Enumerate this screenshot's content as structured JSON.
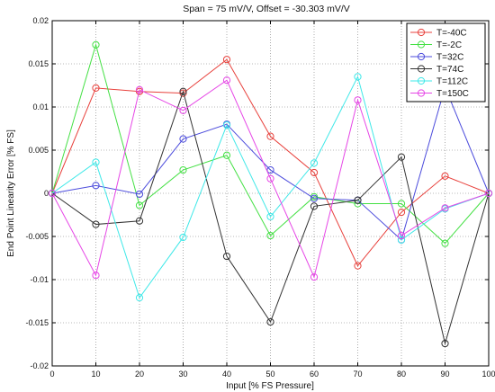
{
  "chart_data": {
    "type": "line",
    "title": "Span = 75 mV/V, Offset = -30.303 mV/V",
    "xlabel": "Input [% FS Pressure]",
    "ylabel": "End Point Linearity Error [% FS]",
    "xlim": [
      0,
      100
    ],
    "ylim": [
      -0.02,
      0.02
    ],
    "x_ticks": [
      0,
      10,
      20,
      30,
      40,
      50,
      60,
      70,
      80,
      90,
      100
    ],
    "y_ticks": [
      -0.02,
      -0.015,
      -0.01,
      -0.005,
      0,
      0.005,
      0.01,
      0.015,
      0.02
    ],
    "x_tick_labels": [
      "0",
      "10",
      "20",
      "30",
      "40",
      "50",
      "60",
      "70",
      "80",
      "90",
      "100"
    ],
    "y_tick_labels": [
      "-0.02",
      "-0.015",
      "-0.01",
      "-0.005",
      "0",
      "0.005",
      "0.01",
      "0.015",
      "0.02"
    ],
    "grid": true,
    "legend_position": "top-right",
    "marker": "circle",
    "x": [
      0,
      10,
      20,
      30,
      40,
      50,
      60,
      70,
      80,
      90,
      100
    ],
    "series": [
      {
        "name": "T=-40C",
        "color": "#e8413c",
        "values": [
          0,
          0.0122,
          0.0118,
          0.0116,
          0.0155,
          0.0066,
          0.0024,
          -0.0084,
          -0.0022,
          0.002,
          0
        ]
      },
      {
        "name": "T=-2C",
        "color": "#44e044",
        "values": [
          0,
          0.0172,
          -0.0014,
          0.0027,
          0.0044,
          -0.0049,
          -0.0004,
          -0.0012,
          -0.0012,
          -0.0058,
          0
        ]
      },
      {
        "name": "T=32C",
        "color": "#4b4bdc",
        "values": [
          0,
          0.0009,
          -0.0001,
          0.0063,
          0.008,
          0.0027,
          -0.0006,
          -0.0008,
          -0.0054,
          0.0123,
          0
        ]
      },
      {
        "name": "T=74C",
        "color": "#333333",
        "values": [
          0,
          -0.0036,
          -0.0032,
          0.0118,
          -0.0073,
          -0.0149,
          -0.0015,
          -0.0008,
          0.0042,
          -0.0174,
          0
        ]
      },
      {
        "name": "T=112C",
        "color": "#3ee8e8",
        "values": [
          0,
          0.0036,
          -0.0121,
          -0.0051,
          0.0079,
          -0.0027,
          0.0035,
          0.0135,
          -0.0054,
          -0.0018,
          0
        ]
      },
      {
        "name": "T=150C",
        "color": "#e646e6",
        "values": [
          0,
          -0.0095,
          0.012,
          0.0096,
          0.0131,
          0.0017,
          -0.0097,
          0.0108,
          -0.0049,
          -0.0017,
          0
        ]
      }
    ]
  }
}
